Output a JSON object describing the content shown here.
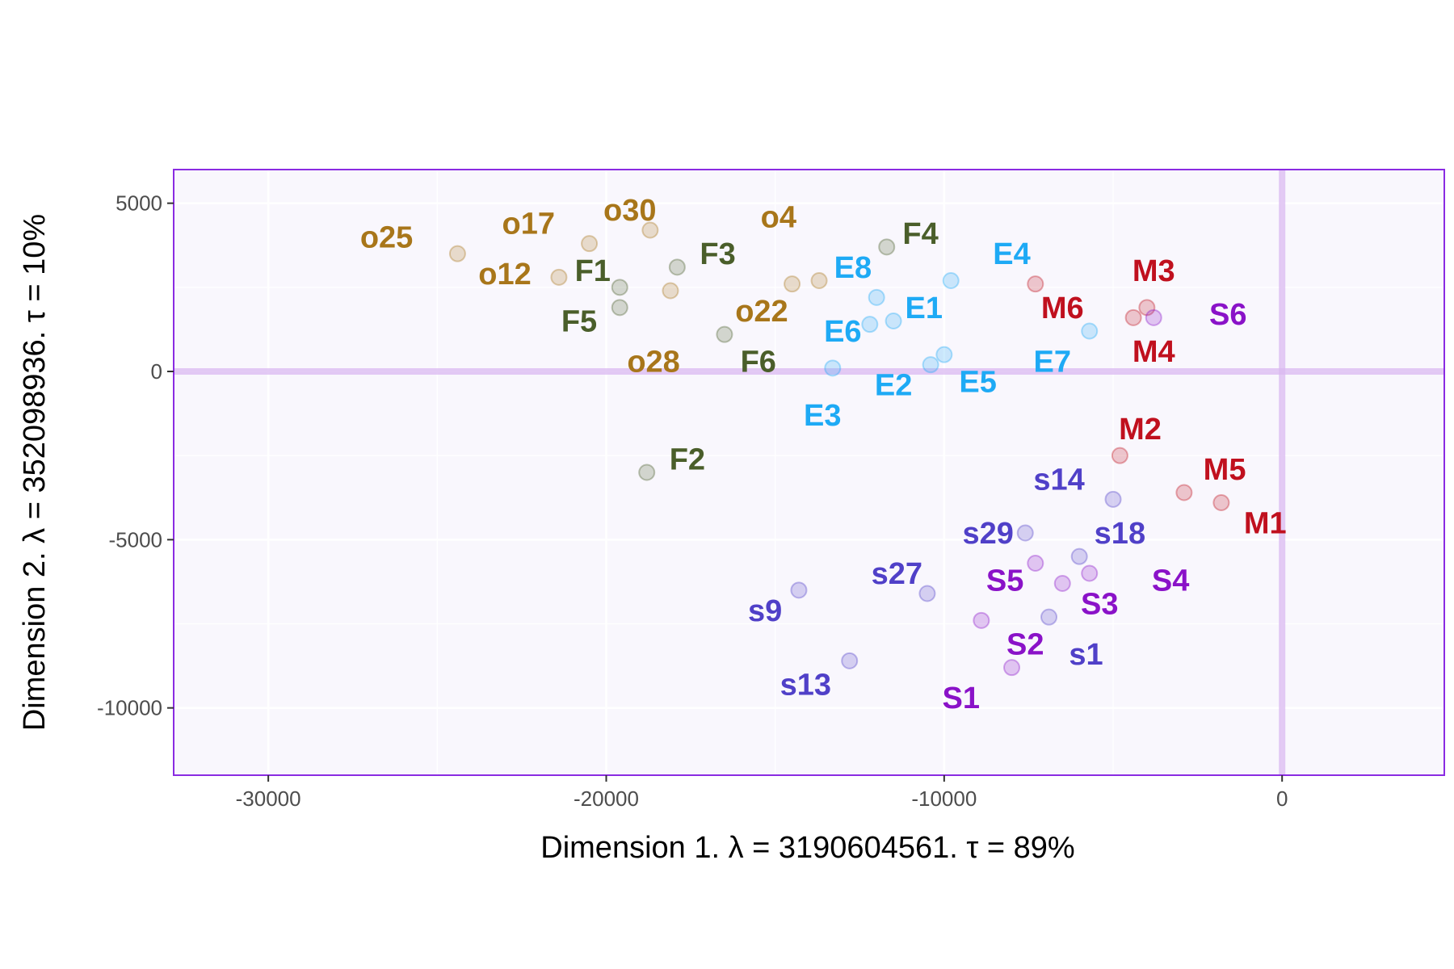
{
  "chart_data": {
    "type": "scatter",
    "xlabel": "Dimension 1.   λ = 3190604561.  τ = 89%",
    "ylabel": "Dimension 2.   λ = 352098936.  τ = 10%",
    "xlim": [
      -32800,
      4800
    ],
    "ylim": [
      -12000,
      6000
    ],
    "x_ticks": [
      -30000,
      -20000,
      -10000,
      0
    ],
    "y_ticks": [
      5000,
      0,
      -5000,
      -10000
    ],
    "x_tick_labels": [
      "-30000",
      "-20000",
      "-10000",
      "0"
    ],
    "y_tick_labels": [
      "5000",
      "0",
      "-5000",
      "-10000"
    ],
    "grid": true,
    "legend": "none",
    "reference_lines": {
      "x": 0,
      "y": 0,
      "color": "#d9b8f0"
    },
    "colors": {
      "panel_background": "#f9f7fd",
      "panel_border": "#8a2be2",
      "o": "#a8761a",
      "F": "#4a5e2a",
      "E": "#1eaaf5",
      "M": "#c0101e",
      "s": "#5040c8",
      "S": "#8a12c8"
    },
    "points": [
      {
        "group": "o",
        "label": "o25",
        "x": -24400,
        "y": 3500,
        "lx": -26500,
        "ly": 4000
      },
      {
        "group": "o",
        "label": "o17",
        "x": -20500,
        "y": 3800,
        "lx": -22300,
        "ly": 4400
      },
      {
        "group": "o",
        "label": "o30",
        "x": -18700,
        "y": 4200,
        "lx": -19300,
        "ly": 4800
      },
      {
        "group": "o",
        "label": "o12",
        "x": -21400,
        "y": 2800,
        "lx": -23000,
        "ly": 2900
      },
      {
        "group": "o",
        "label": "o4",
        "x": -13700,
        "y": 2700,
        "lx": -14900,
        "ly": 4600
      },
      {
        "group": "o",
        "label": "o22",
        "x": -14500,
        "y": 2600,
        "lx": -15400,
        "ly": 1800
      },
      {
        "group": "o",
        "label": "o28",
        "x": -18100,
        "y": 2400,
        "lx": -18600,
        "ly": 300
      },
      {
        "group": "F",
        "label": "F1",
        "x": -19600,
        "y": 2500,
        "lx": -20400,
        "ly": 3000
      },
      {
        "group": "F",
        "label": "F5",
        "x": -19600,
        "y": 1900,
        "lx": -20800,
        "ly": 1500
      },
      {
        "group": "F",
        "label": "F3",
        "x": -17900,
        "y": 3100,
        "lx": -16700,
        "ly": 3500
      },
      {
        "group": "F",
        "label": "F4",
        "x": -11700,
        "y": 3700,
        "lx": -10700,
        "ly": 4100
      },
      {
        "group": "F",
        "label": "F6",
        "x": -16500,
        "y": 1100,
        "lx": -15500,
        "ly": 300
      },
      {
        "group": "F",
        "label": "F2",
        "x": -18800,
        "y": -3000,
        "lx": -17600,
        "ly": -2600
      },
      {
        "group": "E",
        "label": "E8",
        "x": -12000,
        "y": 2200,
        "lx": -12700,
        "ly": 3100
      },
      {
        "group": "E",
        "label": "E6",
        "x": -12200,
        "y": 1400,
        "lx": -13000,
        "ly": 1200
      },
      {
        "group": "E",
        "label": "E1",
        "x": -11500,
        "y": 1500,
        "lx": -10600,
        "ly": 1900
      },
      {
        "group": "E",
        "label": "E4",
        "x": -9800,
        "y": 2700,
        "lx": -8000,
        "ly": 3500
      },
      {
        "group": "E",
        "label": "E3",
        "x": -13300,
        "y": 100,
        "lx": -13600,
        "ly": -1300
      },
      {
        "group": "E",
        "label": "E2",
        "x": -10400,
        "y": 200,
        "lx": -11500,
        "ly": -400
      },
      {
        "group": "E",
        "label": "E5",
        "x": -10000,
        "y": 500,
        "lx": -9000,
        "ly": -300
      },
      {
        "group": "E",
        "label": "E7",
        "x": -5700,
        "y": 1200,
        "lx": -6800,
        "ly": 300
      },
      {
        "group": "M",
        "label": "M3",
        "x": -4000,
        "y": 1900,
        "lx": -3800,
        "ly": 3000
      },
      {
        "group": "M",
        "label": "M6",
        "x": -7300,
        "y": 2600,
        "lx": -6500,
        "ly": 1900
      },
      {
        "group": "M",
        "label": "M4",
        "x": -4400,
        "y": 1600,
        "lx": -3800,
        "ly": 600
      },
      {
        "group": "M",
        "label": "M2",
        "x": -4800,
        "y": -2500,
        "lx": -4200,
        "ly": -1700
      },
      {
        "group": "M",
        "label": "M5",
        "x": -2900,
        "y": -3600,
        "lx": -1700,
        "ly": -2900
      },
      {
        "group": "M",
        "label": "M1",
        "x": -1800,
        "y": -3900,
        "lx": -500,
        "ly": -4500
      },
      {
        "group": "S",
        "label": "S6",
        "x": -3800,
        "y": 1600,
        "lx": -1600,
        "ly": 1700
      },
      {
        "group": "S",
        "label": "S5",
        "x": -7300,
        "y": -5700,
        "lx": -8200,
        "ly": -6200
      },
      {
        "group": "S",
        "label": "S3",
        "x": -6500,
        "y": -6300,
        "lx": -5400,
        "ly": -6900
      },
      {
        "group": "S",
        "label": "S4",
        "x": -5700,
        "y": -6000,
        "lx": -3300,
        "ly": -6200
      },
      {
        "group": "S",
        "label": "S2",
        "x": -8000,
        "y": -8800,
        "lx": -7600,
        "ly": -8100
      },
      {
        "group": "S",
        "label": "S1",
        "x": -8900,
        "y": -7400,
        "lx": -9500,
        "ly": -9700
      },
      {
        "group": "s",
        "label": "s14",
        "x": -5000,
        "y": -3800,
        "lx": -6600,
        "ly": -3200
      },
      {
        "group": "s",
        "label": "s29",
        "x": -7600,
        "y": -4800,
        "lx": -8700,
        "ly": -4800
      },
      {
        "group": "s",
        "label": "s18",
        "x": -6000,
        "y": -5500,
        "lx": -4800,
        "ly": -4800
      },
      {
        "group": "s",
        "label": "s27",
        "x": -10500,
        "y": -6600,
        "lx": -11400,
        "ly": -6000
      },
      {
        "group": "s",
        "label": "s9",
        "x": -14300,
        "y": -6500,
        "lx": -15300,
        "ly": -7100
      },
      {
        "group": "s",
        "label": "s1",
        "x": -6900,
        "y": -7300,
        "lx": -5800,
        "ly": -8400
      },
      {
        "group": "s",
        "label": "s13",
        "x": -12800,
        "y": -8600,
        "lx": -14100,
        "ly": -9300
      }
    ]
  }
}
